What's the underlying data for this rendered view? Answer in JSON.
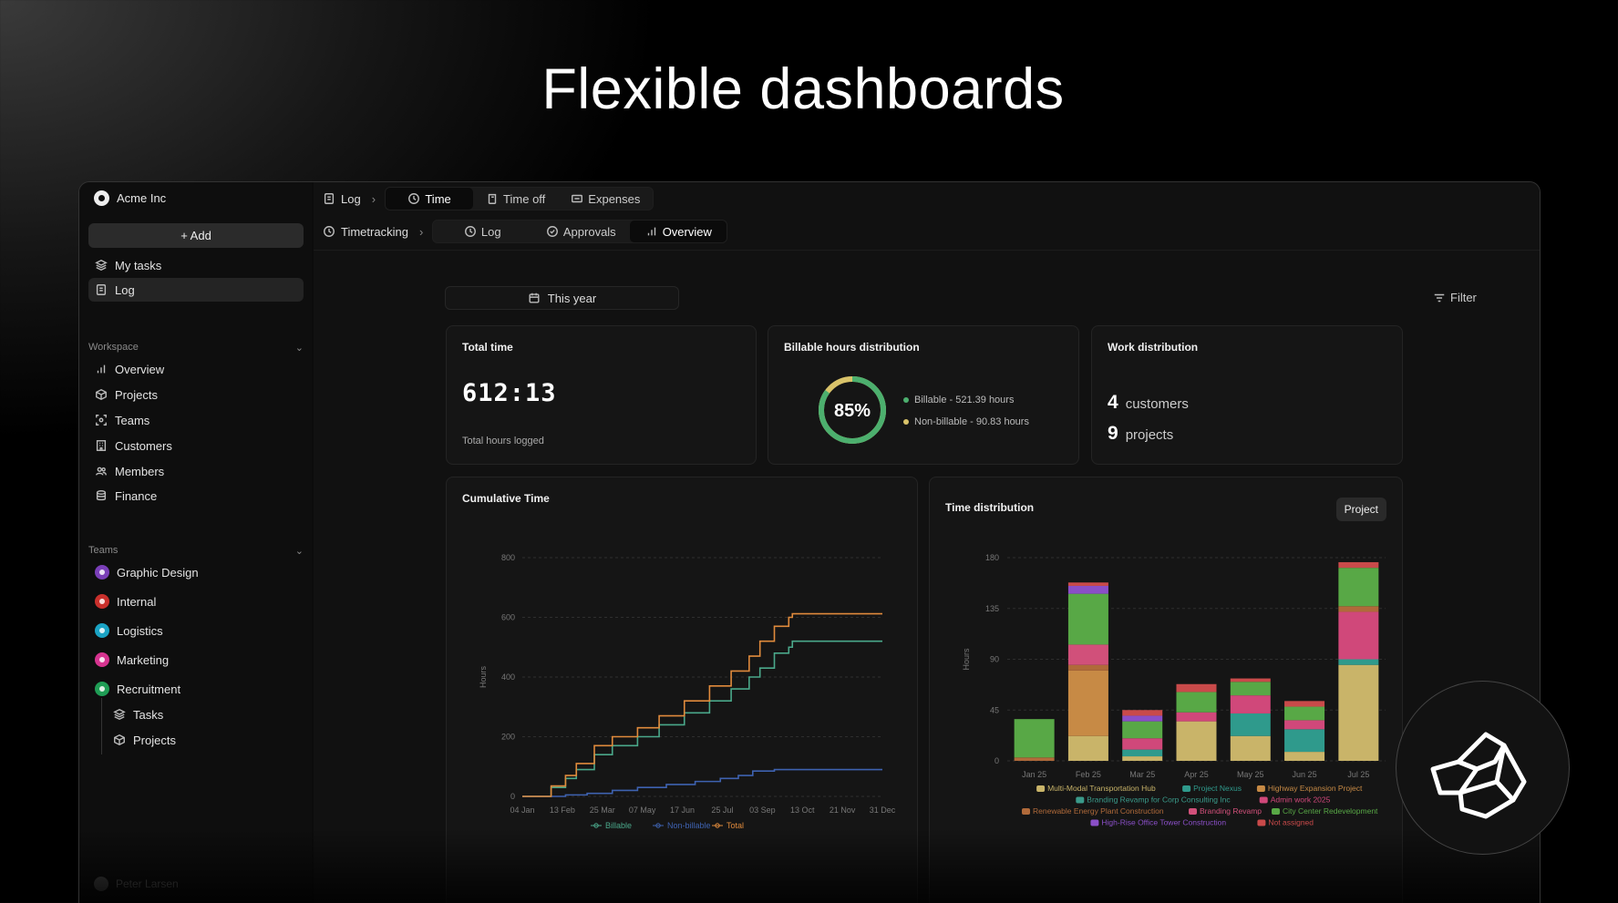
{
  "hero": {
    "title": "Flexible dashboards"
  },
  "sidebar": {
    "org_name": "Acme Inc",
    "add_label": "+ Add",
    "primary": [
      {
        "label": "My tasks",
        "icon": "layers-icon"
      },
      {
        "label": "Log",
        "icon": "log-icon",
        "active": true
      }
    ],
    "workspace_label": "Workspace",
    "workspace": [
      {
        "label": "Overview",
        "icon": "bar-chart-icon"
      },
      {
        "label": "Projects",
        "icon": "cube-icon"
      },
      {
        "label": "Teams",
        "icon": "team-icon"
      },
      {
        "label": "Customers",
        "icon": "building-icon"
      },
      {
        "label": "Members",
        "icon": "members-icon"
      },
      {
        "label": "Finance",
        "icon": "database-icon"
      }
    ],
    "teams_label": "Teams",
    "teams": [
      {
        "label": "Graphic Design",
        "color": "#7a3fb8"
      },
      {
        "label": "Internal",
        "color": "#c9302c"
      },
      {
        "label": "Logistics",
        "color": "#1aa3c4"
      },
      {
        "label": "Marketing",
        "color": "#d6338f"
      },
      {
        "label": "Recruitment",
        "color": "#1f9d55"
      }
    ],
    "sub_items": [
      {
        "label": "Tasks",
        "icon": "layers-icon"
      },
      {
        "label": "Projects",
        "icon": "cube-icon"
      }
    ],
    "user_name": "Peter Larsen"
  },
  "topbar": {
    "crumb1": "Log",
    "tabs1": [
      {
        "label": "Time",
        "icon": "clock-icon",
        "active": true
      },
      {
        "label": "Time off",
        "icon": "beach-icon"
      },
      {
        "label": "Expenses",
        "icon": "receipt-icon"
      }
    ],
    "crumb2": "Timetracking",
    "tabs2": [
      {
        "label": "Log",
        "icon": "clock-icon"
      },
      {
        "label": "Approvals",
        "icon": "check-circle-icon"
      },
      {
        "label": "Overview",
        "icon": "bar-chart-icon",
        "active": true
      }
    ]
  },
  "controls": {
    "date_range": "This year",
    "filter": "Filter"
  },
  "total_time": {
    "title": "Total time",
    "value": "612:13",
    "caption": "Total hours logged"
  },
  "billable": {
    "title": "Billable hours distribution",
    "percent_label": "85%",
    "percent": 85,
    "billable_text": "Billable - 521.39 hours",
    "nonbillable_text": "Non-billable - 90.83 hours",
    "billable_color": "#4caf6e",
    "nonbillable_color": "#d9c36a"
  },
  "work": {
    "title": "Work distribution",
    "customers_count": "4",
    "customers_label": "customers",
    "projects_count": "9",
    "projects_label": "projects"
  },
  "cumulative": {
    "title": "Cumulative Time",
    "ylabel": "Hours",
    "legend": [
      "Billable",
      "Non-billable",
      "Total"
    ],
    "chart_data": {
      "type": "line",
      "x_ticks": [
        "04 Jan",
        "13 Feb",
        "25 Mar",
        "07 May",
        "17 Jun",
        "25 Jul",
        "03 Sep",
        "13 Oct",
        "21 Nov",
        "31 Dec"
      ],
      "y_ticks": [
        0,
        200,
        400,
        600,
        800
      ],
      "ylim": [
        0,
        800
      ],
      "series": [
        {
          "name": "Billable",
          "color": "#4aa88a",
          "points": [
            [
              0,
              0
            ],
            [
              8,
              30
            ],
            [
              12,
              60
            ],
            [
              15,
              90
            ],
            [
              20,
              140
            ],
            [
              25,
              170
            ],
            [
              32,
              200
            ],
            [
              38,
              240
            ],
            [
              45,
              280
            ],
            [
              52,
              320
            ],
            [
              58,
              360
            ],
            [
              63,
              400
            ],
            [
              66,
              430
            ],
            [
              70,
              480
            ],
            [
              74,
              500
            ],
            [
              75,
              520
            ],
            [
              100,
              520
            ]
          ]
        },
        {
          "name": "Non-billable",
          "color": "#3e62b0",
          "points": [
            [
              0,
              0
            ],
            [
              12,
              5
            ],
            [
              18,
              10
            ],
            [
              25,
              20
            ],
            [
              32,
              30
            ],
            [
              40,
              40
            ],
            [
              48,
              50
            ],
            [
              55,
              60
            ],
            [
              60,
              70
            ],
            [
              64,
              85
            ],
            [
              70,
              90
            ],
            [
              100,
              90
            ]
          ]
        },
        {
          "name": "Total",
          "color": "#e08a3c",
          "points": [
            [
              0,
              0
            ],
            [
              8,
              35
            ],
            [
              12,
              70
            ],
            [
              15,
              110
            ],
            [
              20,
              170
            ],
            [
              25,
              200
            ],
            [
              32,
              230
            ],
            [
              38,
              270
            ],
            [
              45,
              320
            ],
            [
              52,
              370
            ],
            [
              58,
              420
            ],
            [
              63,
              470
            ],
            [
              66,
              520
            ],
            [
              70,
              570
            ],
            [
              74,
              600
            ],
            [
              75,
              612
            ],
            [
              100,
              612
            ]
          ]
        }
      ]
    }
  },
  "timedist": {
    "title": "Time distribution",
    "group_button": "Project",
    "ylabel": "Hours",
    "chart_data": {
      "type": "bar",
      "stacked": true,
      "categories": [
        "Jan 25",
        "Feb 25",
        "Mar 25",
        "Apr 25",
        "May 25",
        "Jun 25",
        "Jul 25"
      ],
      "ylim": [
        0,
        180
      ],
      "y_ticks": [
        0,
        45,
        90,
        135,
        180
      ],
      "series": [
        {
          "name": "Multi-Modal Transportation Hub",
          "color": "#c9b469",
          "values": [
            0,
            22,
            4,
            35,
            22,
            8,
            85
          ]
        },
        {
          "name": "Project Nexus",
          "color": "#2f9a8c",
          "values": [
            0,
            0,
            6,
            0,
            20,
            20,
            5
          ]
        },
        {
          "name": "Highway Expansion Project",
          "color": "#c78a45",
          "values": [
            0,
            58,
            0,
            0,
            0,
            0,
            0
          ]
        },
        {
          "name": "Branding Revamp for Corp Consulting Inc",
          "color": "#3a9a8a",
          "values": [
            0,
            0,
            0,
            0,
            0,
            0,
            0
          ]
        },
        {
          "name": "Admin work 2025",
          "color": "#d0487a",
          "values": [
            0,
            0,
            10,
            8,
            16,
            8,
            42
          ]
        },
        {
          "name": "Renewable Energy Plant Construction",
          "color": "#b06a3a",
          "values": [
            3,
            5,
            0,
            0,
            0,
            0,
            5
          ]
        },
        {
          "name": "Branding Revamp",
          "color": "#d1507a",
          "values": [
            0,
            18,
            0,
            0,
            0,
            0,
            0
          ]
        },
        {
          "name": "City Center Redevelopment",
          "color": "#58a846",
          "values": [
            34,
            45,
            15,
            18,
            12,
            12,
            34
          ]
        },
        {
          "name": "High-Rise Office Tower Construction",
          "color": "#8a4fc7",
          "values": [
            0,
            7,
            5,
            0,
            0,
            0,
            0
          ]
        },
        {
          "name": "Not assigned",
          "color": "#c94a4a",
          "values": [
            0,
            3,
            5,
            7,
            3,
            5,
            5
          ]
        }
      ]
    }
  },
  "colors": {
    "accent": "#4caf6e",
    "background": "#000000"
  }
}
